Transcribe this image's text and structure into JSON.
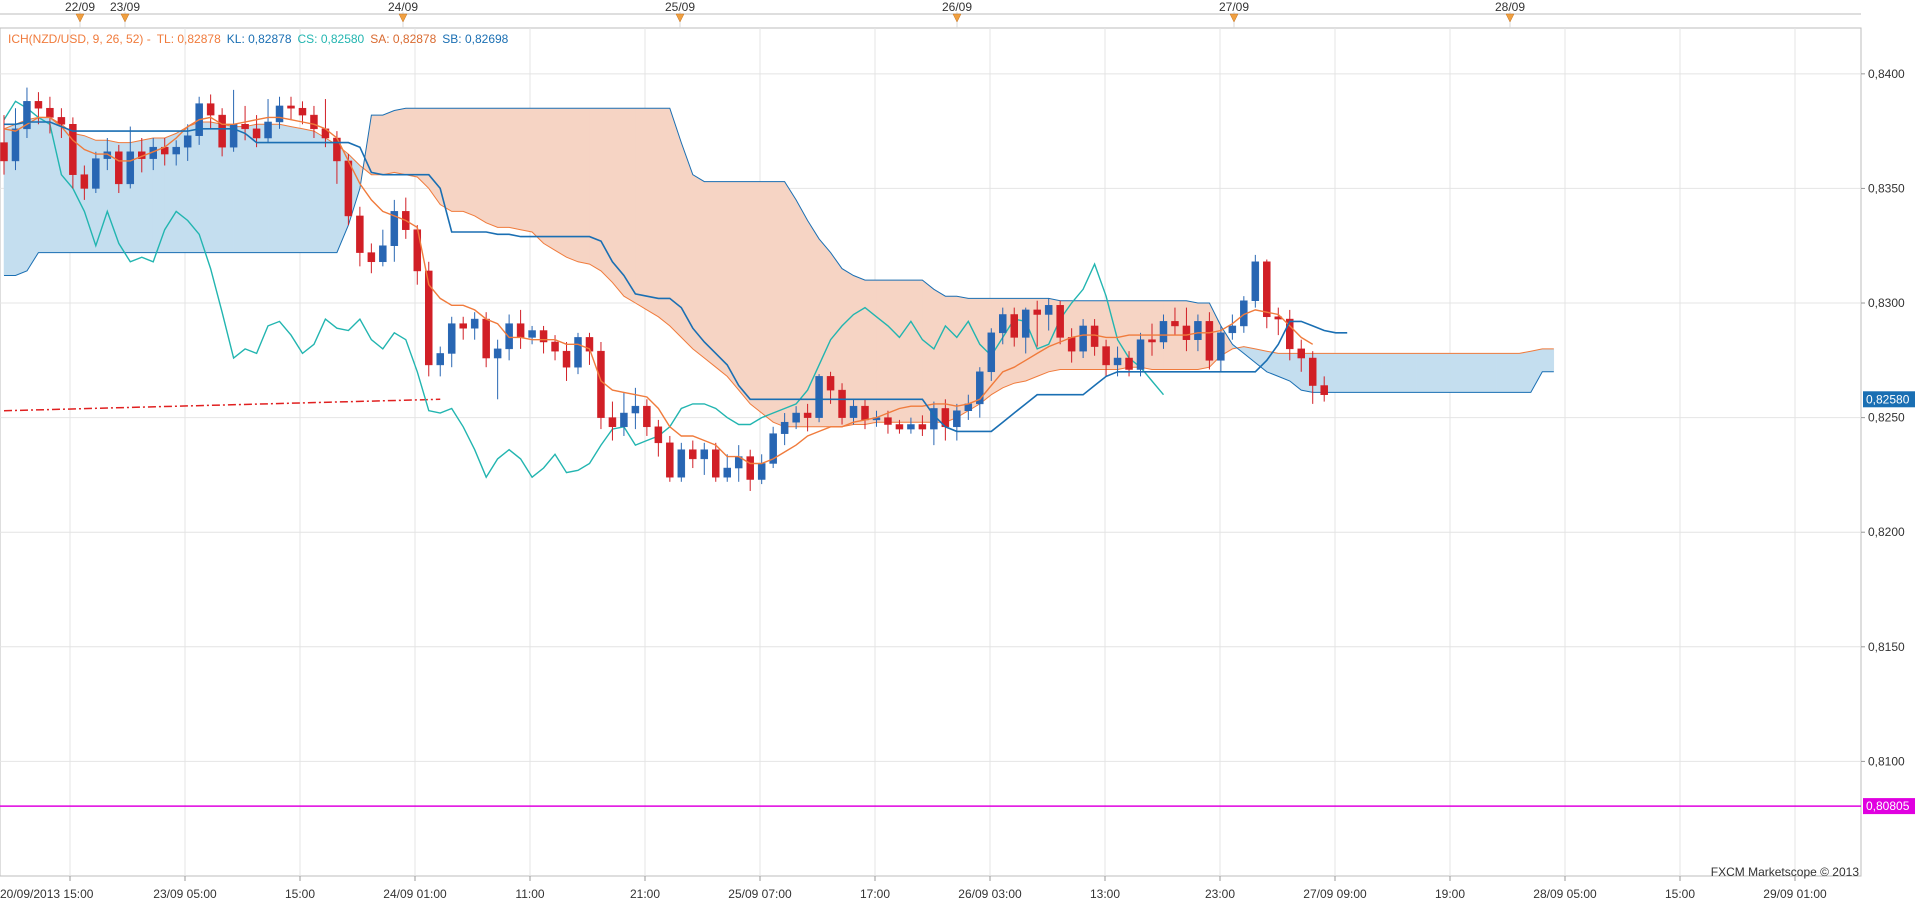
{
  "legend": {
    "name": "ICH(NZD/USD, 9, 26, 52) -",
    "tl": "TL: 0,82878",
    "kl": "KL: 0,82878",
    "cs": "CS: 0,82580",
    "sa": "SA: 0,82878",
    "sb": "SB: 0,82698"
  },
  "copyright": "FXCM Marketscope © 2013",
  "colors": {
    "tenkan": "#f07b3c",
    "kijun": "#1a6fb3",
    "chikou": "#22b5b0",
    "cloud_bull": "#c4deef",
    "cloud_bear": "#f6d4c4",
    "candle_up": "#2866b3",
    "candle_down": "#d11f26",
    "hline": "#e000e0",
    "trend": "#e02020",
    "grid": "#e4e4e4"
  },
  "chart_data": {
    "type": "candlestick",
    "instrument": "NZD/USD",
    "timeframe_hours": 2,
    "ylim": [
      0.805,
      0.842
    ],
    "x_tick_labels": [
      "20/09/2013 15:00",
      "23/09 05:00",
      "15:00",
      "24/09 01:00",
      "11:00",
      "21:00",
      "25/09 07:00",
      "17:00",
      "26/09 03:00",
      "13:00",
      "23:00",
      "27/09 09:00",
      "19:00",
      "28/09 05:00",
      "15:00",
      "29/09 01:00"
    ],
    "y_tick_labels": [
      "0,8400",
      "0,8350",
      "0,8300",
      "0,8250",
      "0,8200",
      "0,8150",
      "0,8100"
    ],
    "date_markers": [
      "22/09",
      "23/09",
      "24/09",
      "25/09",
      "26/09",
      "27/09",
      "28/09"
    ],
    "price_labels": [
      {
        "text": "0,82580",
        "value": 0.8258,
        "color": "#1a6fb3"
      },
      {
        "text": "0,80805",
        "value": 0.80805,
        "color": "#e000e0"
      }
    ],
    "horizontal_line": 0.80805,
    "candles": [
      [
        0.837,
        0.8362,
        0.8382,
        0.8356
      ],
      [
        0.8362,
        0.8376,
        0.8385,
        0.8358
      ],
      [
        0.8376,
        0.8388,
        0.8394,
        0.8372
      ],
      [
        0.8388,
        0.8385,
        0.8392,
        0.8378
      ],
      [
        0.8385,
        0.8381,
        0.839,
        0.8374
      ],
      [
        0.8381,
        0.8378,
        0.8385,
        0.8372
      ],
      [
        0.8378,
        0.8356,
        0.8381,
        0.835
      ],
      [
        0.8356,
        0.835,
        0.836,
        0.8345
      ],
      [
        0.835,
        0.8363,
        0.8366,
        0.8348
      ],
      [
        0.8363,
        0.8366,
        0.8372,
        0.8358
      ],
      [
        0.8366,
        0.8352,
        0.8369,
        0.8348
      ],
      [
        0.8352,
        0.8366,
        0.8377,
        0.835
      ],
      [
        0.8366,
        0.8363,
        0.8372,
        0.8357
      ],
      [
        0.8363,
        0.8368,
        0.8372,
        0.8358
      ],
      [
        0.8368,
        0.8365,
        0.8372,
        0.836
      ],
      [
        0.8365,
        0.8368,
        0.8371,
        0.836
      ],
      [
        0.8368,
        0.8373,
        0.8378,
        0.8362
      ],
      [
        0.8373,
        0.8387,
        0.839,
        0.8369
      ],
      [
        0.8387,
        0.8382,
        0.8391,
        0.8376
      ],
      [
        0.8382,
        0.8368,
        0.8385,
        0.8364
      ],
      [
        0.8368,
        0.8378,
        0.8393,
        0.8366
      ],
      [
        0.8378,
        0.8376,
        0.8386,
        0.8371
      ],
      [
        0.8376,
        0.8372,
        0.8382,
        0.8368
      ],
      [
        0.8372,
        0.8379,
        0.8389,
        0.837
      ],
      [
        0.8379,
        0.8386,
        0.839,
        0.8376
      ],
      [
        0.8386,
        0.8385,
        0.839,
        0.838
      ],
      [
        0.8385,
        0.8382,
        0.8388,
        0.8378
      ],
      [
        0.8382,
        0.8376,
        0.8386,
        0.8372
      ],
      [
        0.8376,
        0.8372,
        0.8389,
        0.8368
      ],
      [
        0.8372,
        0.8362,
        0.8375,
        0.8352
      ],
      [
        0.8362,
        0.8338,
        0.8365,
        0.8334
      ],
      [
        0.8338,
        0.8322,
        0.8342,
        0.8316
      ],
      [
        0.8322,
        0.8318,
        0.8326,
        0.8313
      ],
      [
        0.8318,
        0.8325,
        0.8332,
        0.8316
      ],
      [
        0.8325,
        0.834,
        0.8345,
        0.8318
      ],
      [
        0.834,
        0.8332,
        0.8346,
        0.8328
      ],
      [
        0.8332,
        0.8314,
        0.8334,
        0.8308
      ],
      [
        0.8314,
        0.8273,
        0.8318,
        0.8268
      ],
      [
        0.8273,
        0.8278,
        0.8281,
        0.8268
      ],
      [
        0.8278,
        0.8291,
        0.8294,
        0.8272
      ],
      [
        0.8291,
        0.8289,
        0.8294,
        0.8284
      ],
      [
        0.8289,
        0.8293,
        0.8296,
        0.8284
      ],
      [
        0.8293,
        0.8276,
        0.8296,
        0.8272
      ],
      [
        0.8276,
        0.828,
        0.8284,
        0.8258
      ],
      [
        0.828,
        0.8291,
        0.8295,
        0.8275
      ],
      [
        0.8291,
        0.8285,
        0.8297,
        0.828
      ],
      [
        0.8285,
        0.8288,
        0.829,
        0.8282
      ],
      [
        0.8288,
        0.8283,
        0.829,
        0.8278
      ],
      [
        0.8283,
        0.8279,
        0.8286,
        0.8275
      ],
      [
        0.8279,
        0.8272,
        0.8283,
        0.8266
      ],
      [
        0.8272,
        0.8285,
        0.8287,
        0.8269
      ],
      [
        0.8285,
        0.8279,
        0.8287,
        0.8273
      ],
      [
        0.8279,
        0.825,
        0.8283,
        0.8245
      ],
      [
        0.825,
        0.8246,
        0.8257,
        0.824
      ],
      [
        0.8246,
        0.8252,
        0.8261,
        0.8242
      ],
      [
        0.8252,
        0.8255,
        0.8263,
        0.8245
      ],
      [
        0.8255,
        0.8246,
        0.8258,
        0.8242
      ],
      [
        0.8246,
        0.8239,
        0.8249,
        0.8233
      ],
      [
        0.8239,
        0.8224,
        0.8242,
        0.8222
      ],
      [
        0.8224,
        0.8236,
        0.8239,
        0.8222
      ],
      [
        0.8236,
        0.8232,
        0.824,
        0.8228
      ],
      [
        0.8232,
        0.8236,
        0.8239,
        0.8225
      ],
      [
        0.8236,
        0.8224,
        0.8239,
        0.8222
      ],
      [
        0.8224,
        0.8228,
        0.8234,
        0.8222
      ],
      [
        0.8228,
        0.8233,
        0.8238,
        0.8222
      ],
      [
        0.8233,
        0.8223,
        0.8236,
        0.8218
      ],
      [
        0.8223,
        0.823,
        0.8234,
        0.8221
      ],
      [
        0.823,
        0.8243,
        0.8246,
        0.8228
      ],
      [
        0.8243,
        0.8248,
        0.8252,
        0.8238
      ],
      [
        0.8248,
        0.8252,
        0.8255,
        0.8245
      ],
      [
        0.8252,
        0.825,
        0.8256,
        0.8244
      ],
      [
        0.825,
        0.8268,
        0.8269,
        0.8248
      ],
      [
        0.8268,
        0.8262,
        0.827,
        0.8256
      ],
      [
        0.8262,
        0.825,
        0.8265,
        0.8247
      ],
      [
        0.825,
        0.8255,
        0.8258,
        0.8247
      ],
      [
        0.8255,
        0.8249,
        0.8258,
        0.8245
      ],
      [
        0.8249,
        0.825,
        0.8253,
        0.8246
      ],
      [
        0.825,
        0.8247,
        0.8253,
        0.8243
      ],
      [
        0.8247,
        0.8245,
        0.8249,
        0.8243
      ],
      [
        0.8245,
        0.8247,
        0.825,
        0.8243
      ],
      [
        0.8247,
        0.8245,
        0.8251,
        0.8242
      ],
      [
        0.8245,
        0.8254,
        0.8257,
        0.8238
      ],
      [
        0.8254,
        0.8246,
        0.8258,
        0.824
      ],
      [
        0.8246,
        0.8253,
        0.8256,
        0.824
      ],
      [
        0.8253,
        0.8256,
        0.826,
        0.8249
      ],
      [
        0.8256,
        0.827,
        0.8272,
        0.825
      ],
      [
        0.827,
        0.8287,
        0.8289,
        0.8266
      ],
      [
        0.8287,
        0.8295,
        0.8298,
        0.8282
      ],
      [
        0.8295,
        0.8285,
        0.8298,
        0.8281
      ],
      [
        0.8285,
        0.8297,
        0.8298,
        0.8278
      ],
      [
        0.8297,
        0.8295,
        0.8301,
        0.8281
      ],
      [
        0.8295,
        0.8299,
        0.8302,
        0.8288
      ],
      [
        0.8299,
        0.8285,
        0.8301,
        0.8282
      ],
      [
        0.8285,
        0.8279,
        0.8289,
        0.8274
      ],
      [
        0.8279,
        0.829,
        0.8293,
        0.8276
      ],
      [
        0.829,
        0.8281,
        0.8293,
        0.8277
      ],
      [
        0.8281,
        0.8273,
        0.8284,
        0.8268
      ],
      [
        0.8273,
        0.8276,
        0.8281,
        0.8268
      ],
      [
        0.8276,
        0.8271,
        0.8279,
        0.8268
      ],
      [
        0.8271,
        0.8284,
        0.8287,
        0.8268
      ],
      [
        0.8284,
        0.8283,
        0.8291,
        0.8277
      ],
      [
        0.8283,
        0.8292,
        0.8295,
        0.828
      ],
      [
        0.8292,
        0.829,
        0.8298,
        0.8286
      ],
      [
        0.829,
        0.8284,
        0.8298,
        0.8279
      ],
      [
        0.8284,
        0.8292,
        0.8295,
        0.8279
      ],
      [
        0.8292,
        0.8275,
        0.8296,
        0.8271
      ],
      [
        0.8275,
        0.8287,
        0.829,
        0.827
      ],
      [
        0.8287,
        0.829,
        0.8295,
        0.8284
      ],
      [
        0.829,
        0.8301,
        0.8303,
        0.8287
      ],
      [
        0.8301,
        0.8318,
        0.8321,
        0.8298
      ],
      [
        0.8318,
        0.8294,
        0.8319,
        0.8289
      ],
      [
        0.8294,
        0.8293,
        0.8298,
        0.8286
      ],
      [
        0.8293,
        0.828,
        0.8297,
        0.8275
      ],
      [
        0.828,
        0.8276,
        0.8284,
        0.827
      ],
      [
        0.8276,
        0.8264,
        0.8279,
        0.8256
      ],
      [
        0.8264,
        0.826,
        0.8268,
        0.8257
      ]
    ],
    "tenkan": [
      0.8376,
      0.8375,
      0.8378,
      0.8381,
      0.8381,
      0.8377,
      0.8371,
      0.8367,
      0.8365,
      0.8365,
      0.8362,
      0.8362,
      0.8364,
      0.8366,
      0.8368,
      0.8372,
      0.8377,
      0.838,
      0.8381,
      0.8378,
      0.8378,
      0.8379,
      0.838,
      0.8381,
      0.8381,
      0.838,
      0.8379,
      0.8378,
      0.8376,
      0.8372,
      0.8362,
      0.8352,
      0.8345,
      0.834,
      0.8338,
      0.8336,
      0.8333,
      0.8308,
      0.8302,
      0.8299,
      0.8299,
      0.8297,
      0.8293,
      0.8291,
      0.8285,
      0.8285,
      0.8284,
      0.8284,
      0.8284,
      0.8282,
      0.8282,
      0.828,
      0.8266,
      0.8262,
      0.8261,
      0.826,
      0.8259,
      0.8254,
      0.8246,
      0.8242,
      0.8242,
      0.824,
      0.8238,
      0.8233,
      0.8233,
      0.823,
      0.823,
      0.8232,
      0.8235,
      0.8238,
      0.8242,
      0.8244,
      0.8246,
      0.8246,
      0.8248,
      0.8249,
      0.825,
      0.8252,
      0.8254,
      0.8255,
      0.8255,
      0.8256,
      0.8256,
      0.8255,
      0.8256,
      0.8258,
      0.8264,
      0.827,
      0.8272,
      0.8275,
      0.8278,
      0.8281,
      0.8283,
      0.8285,
      0.8286,
      0.8286,
      0.8285,
      0.8285,
      0.8286,
      0.8286,
      0.8286,
      0.8286,
      0.8286,
      0.8286,
      0.8287,
      0.8287,
      0.8288,
      0.8291,
      0.8295,
      0.8297,
      0.8296,
      0.8295,
      0.829,
      0.8285,
      0.8282
    ],
    "kijun": [
      0.8378,
      0.8378,
      0.8379,
      0.8379,
      0.8379,
      0.8377,
      0.8375,
      0.8375,
      0.8375,
      0.8375,
      0.8375,
      0.8375,
      0.8375,
      0.8375,
      0.8375,
      0.8375,
      0.8375,
      0.8376,
      0.8376,
      0.8376,
      0.8376,
      0.8374,
      0.837,
      0.837,
      0.837,
      0.837,
      0.837,
      0.837,
      0.837,
      0.837,
      0.837,
      0.8368,
      0.8357,
      0.8356,
      0.8356,
      0.8356,
      0.8356,
      0.8356,
      0.835,
      0.8331,
      0.8331,
      0.8331,
      0.8331,
      0.833,
      0.833,
      0.8329,
      0.8329,
      0.8329,
      0.8329,
      0.8329,
      0.8329,
      0.8329,
      0.8327,
      0.8318,
      0.8312,
      0.8304,
      0.8303,
      0.8302,
      0.8302,
      0.8298,
      0.8289,
      0.8283,
      0.8278,
      0.8273,
      0.8264,
      0.8258,
      0.8258,
      0.8258,
      0.8258,
      0.8258,
      0.8258,
      0.8258,
      0.8258,
      0.8258,
      0.8258,
      0.8258,
      0.8258,
      0.8258,
      0.8258,
      0.8258,
      0.8258,
      0.8251,
      0.8246,
      0.8244,
      0.8244,
      0.8244,
      0.8244,
      0.8248,
      0.8252,
      0.8256,
      0.826,
      0.826,
      0.826,
      0.826,
      0.826,
      0.8264,
      0.8268,
      0.827,
      0.827,
      0.827,
      0.827,
      0.827,
      0.827,
      0.827,
      0.827,
      0.827,
      0.827,
      0.827,
      0.827,
      0.827,
      0.8275,
      0.8282,
      0.8292,
      0.8292,
      0.829,
      0.8288,
      0.8287,
      0.8287
    ],
    "chikou_shift_periods": 26,
    "chikou": [
      0.838,
      0.8388,
      0.8385,
      0.8381,
      0.8378,
      0.8356,
      0.835,
      0.834,
      0.8325,
      0.834,
      0.8326,
      0.8318,
      0.832,
      0.8318,
      0.8332,
      0.834,
      0.8336,
      0.833,
      0.8315,
      0.8296,
      0.8276,
      0.828,
      0.8278,
      0.829,
      0.8292,
      0.8286,
      0.8278,
      0.8282,
      0.8293,
      0.8289,
      0.8288,
      0.8293,
      0.8284,
      0.828,
      0.8287,
      0.8284,
      0.827,
      0.8253,
      0.8252,
      0.8254,
      0.8246,
      0.8236,
      0.8224,
      0.8232,
      0.8236,
      0.8232,
      0.8224,
      0.8228,
      0.8234,
      0.8226,
      0.8227,
      0.823,
      0.8238,
      0.8245,
      0.8246,
      0.8238,
      0.824,
      0.8242,
      0.8246,
      0.8254,
      0.8256,
      0.8256,
      0.8254,
      0.825,
      0.8247,
      0.8247,
      0.825,
      0.8252,
      0.8254,
      0.8256,
      0.8262,
      0.8273,
      0.8284,
      0.829,
      0.8295,
      0.8298,
      0.8294,
      0.829,
      0.8285,
      0.8292,
      0.8284,
      0.828,
      0.829,
      0.8285,
      0.8292,
      0.8282,
      0.8277,
      0.8285,
      0.8293,
      0.8292,
      0.828,
      0.8282,
      0.8293,
      0.83,
      0.8306,
      0.8317,
      0.8303,
      0.8284,
      0.8276,
      0.8272,
      0.8266,
      0.826
    ],
    "senkou_a": [
      0.8376,
      0.8378,
      0.838,
      0.8381,
      0.8381,
      0.8378,
      0.8374,
      0.8373,
      0.8371,
      0.8371,
      0.837,
      0.837,
      0.8371,
      0.8372,
      0.8372,
      0.8374,
      0.8377,
      0.8379,
      0.8379,
      0.8378,
      0.8377,
      0.8377,
      0.8378,
      0.8378,
      0.8378,
      0.8377,
      0.8376,
      0.8375,
      0.8372,
      0.8369,
      0.8365,
      0.836,
      0.8356,
      0.8356,
      0.8357,
      0.8356,
      0.8355,
      0.835,
      0.8343,
      0.834,
      0.834,
      0.8338,
      0.8335,
      0.8333,
      0.8333,
      0.8332,
      0.8331,
      0.8326,
      0.8323,
      0.832,
      0.8318,
      0.8317,
      0.8314,
      0.8309,
      0.8303,
      0.83,
      0.8297,
      0.8294,
      0.829,
      0.8285,
      0.828,
      0.8276,
      0.8272,
      0.8268,
      0.8262,
      0.8256,
      0.8252,
      0.8248,
      0.8246,
      0.8246,
      0.8246,
      0.8246,
      0.8246,
      0.8246,
      0.8247,
      0.8247,
      0.8248,
      0.8248,
      0.8248,
      0.8248,
      0.8248,
      0.8248,
      0.8248,
      0.825,
      0.8253,
      0.8256,
      0.826,
      0.8263,
      0.8265,
      0.8266,
      0.8268,
      0.827,
      0.8271,
      0.8271,
      0.8271,
      0.8271,
      0.8271,
      0.8271,
      0.8272,
      0.8272,
      0.8271,
      0.8271,
      0.8271,
      0.8271,
      0.8271,
      0.8272,
      0.8277,
      0.828,
      0.8281,
      0.828,
      0.8279,
      0.8278,
      0.8278,
      0.8278,
      0.8278,
      0.8278,
      0.8278,
      0.8278,
      0.8278,
      0.8278,
      0.8278,
      0.8278,
      0.8278,
      0.8278,
      0.8278,
      0.8278,
      0.8278,
      0.8278,
      0.8278,
      0.8278,
      0.8278,
      0.8278,
      0.8278,
      0.8279,
      0.828,
      0.828
    ],
    "senkou_b": [
      0.8312,
      0.8312,
      0.8314,
      0.8322,
      0.8322,
      0.8322,
      0.8322,
      0.8322,
      0.8322,
      0.8322,
      0.8322,
      0.8322,
      0.8322,
      0.8322,
      0.8322,
      0.8322,
      0.8322,
      0.8322,
      0.8322,
      0.8322,
      0.8322,
      0.8322,
      0.8322,
      0.8322,
      0.8322,
      0.8322,
      0.8322,
      0.8322,
      0.8322,
      0.8322,
      0.8334,
      0.835,
      0.8382,
      0.8382,
      0.8384,
      0.8385,
      0.8385,
      0.8385,
      0.8385,
      0.8385,
      0.8385,
      0.8385,
      0.8385,
      0.8385,
      0.8385,
      0.8385,
      0.8385,
      0.8385,
      0.8385,
      0.8385,
      0.8385,
      0.8385,
      0.8385,
      0.8385,
      0.8385,
      0.8385,
      0.8385,
      0.8385,
      0.8385,
      0.837,
      0.8356,
      0.8353,
      0.8353,
      0.8353,
      0.8353,
      0.8353,
      0.8353,
      0.8353,
      0.8353,
      0.8345,
      0.8336,
      0.8328,
      0.8322,
      0.8315,
      0.8312,
      0.831,
      0.831,
      0.831,
      0.831,
      0.831,
      0.831,
      0.8306,
      0.8303,
      0.8303,
      0.8302,
      0.8302,
      0.8302,
      0.8302,
      0.8302,
      0.8302,
      0.8302,
      0.8302,
      0.8301,
      0.8301,
      0.8301,
      0.8301,
      0.8301,
      0.8301,
      0.8301,
      0.8301,
      0.8301,
      0.8301,
      0.8301,
      0.8301,
      0.83,
      0.83,
      0.829,
      0.8282,
      0.8278,
      0.8274,
      0.827,
      0.8268,
      0.8266,
      0.8262,
      0.8261,
      0.8261,
      0.8261,
      0.8261,
      0.8261,
      0.8261,
      0.8261,
      0.8261,
      0.8261,
      0.8261,
      0.8261,
      0.8261,
      0.8261,
      0.8261,
      0.8261,
      0.8261,
      0.8261,
      0.8261,
      0.8261,
      0.8261,
      0.827,
      0.827
    ],
    "trendline": {
      "from": [
        0,
        0.8253
      ],
      "to": [
        38,
        0.8258
      ]
    }
  }
}
